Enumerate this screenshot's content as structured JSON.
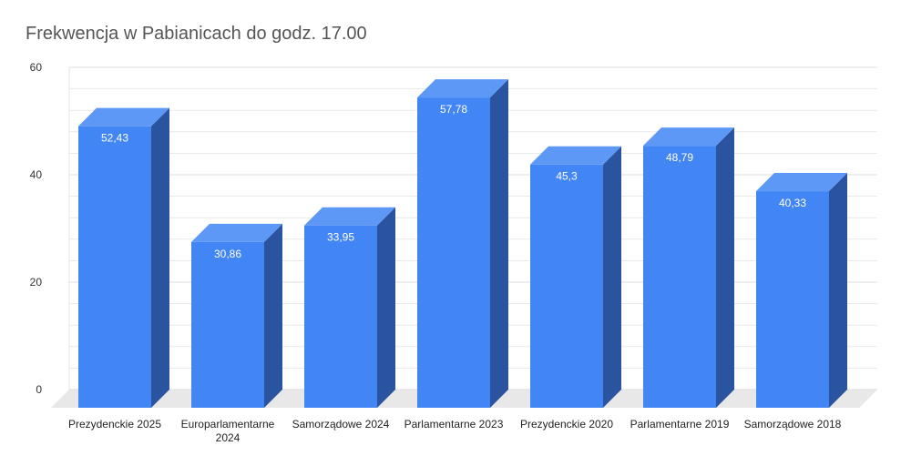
{
  "chart_data": {
    "type": "bar",
    "style": "3d",
    "title": "Frekwencja w Pabianicach do godz. 17.00",
    "xlabel": "",
    "ylabel": "",
    "categories": [
      [
        "Prezydenckie   2025"
      ],
      [
        "Europarlamentarne",
        "2024"
      ],
      [
        "Samorządowe 2024"
      ],
      [
        "Parlamentarne 2023"
      ],
      [
        "Prezydenckie    2020"
      ],
      [
        "Parlamentarne 2019"
      ],
      [
        "Samorządowe 2018"
      ]
    ],
    "values": [
      52.43,
      30.86,
      33.95,
      57.78,
      45.3,
      48.79,
      40.33
    ],
    "value_labels": [
      "52,43",
      "30,86",
      "33,95",
      "57,78",
      "45,3",
      "48,79",
      "40,33"
    ],
    "ylim": [
      0,
      60
    ],
    "yticks": [
      0,
      20,
      40,
      60
    ],
    "grid": true,
    "legend": "none",
    "colors": {
      "front": "#4285f4",
      "side": "#2a53a0",
      "top": "#5e98f6",
      "floor": "#e8e8e8",
      "grid": "#dddddd"
    }
  }
}
